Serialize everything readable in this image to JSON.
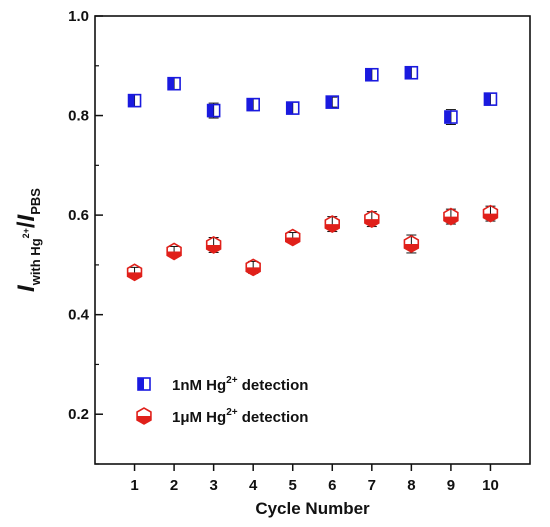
{
  "chart_data": {
    "type": "scatter",
    "x": [
      1,
      2,
      3,
      4,
      5,
      6,
      7,
      8,
      9,
      10
    ],
    "xlabel": "Cycle Number",
    "ylabel": {
      "main": "I",
      "sub1": "with Hg",
      "sup": "2+",
      "slash": "/",
      "main2": "I",
      "sub2": "PBS"
    },
    "xlim": [
      0,
      11
    ],
    "ylim": [
      0.1,
      1.0
    ],
    "xticks": [
      1,
      2,
      3,
      4,
      5,
      6,
      7,
      8,
      9,
      10
    ],
    "yticks": [
      0.2,
      0.4,
      0.6,
      0.8,
      1.0
    ],
    "ytick_labels": [
      "0.2",
      "0.4",
      "0.6",
      "0.8",
      "1.0"
    ],
    "grid": false,
    "legend_position": "bottom-left",
    "series": [
      {
        "name_parts": {
          "pre": "1nM Hg",
          "sup": "2+",
          "post": " detection"
        },
        "marker": "half-filled-square",
        "color": "#1a1adf",
        "values": [
          0.83,
          0.864,
          0.81,
          0.822,
          0.815,
          0.827,
          0.882,
          0.886,
          0.797,
          0.833
        ],
        "errors": [
          0.012,
          0.012,
          0.015,
          0.012,
          0.012,
          0.01,
          0.012,
          0.012,
          0.015,
          0.012
        ]
      },
      {
        "name_parts": {
          "pre": "1μM Hg",
          "sup": "2+",
          "post": " detection"
        },
        "marker": "half-filled-hexagon",
        "color": "#e0201a",
        "values": [
          0.485,
          0.527,
          0.54,
          0.495,
          0.555,
          0.582,
          0.592,
          0.542,
          0.597,
          0.603
        ],
        "errors": [
          0.01,
          0.01,
          0.015,
          0.012,
          0.01,
          0.015,
          0.015,
          0.018,
          0.015,
          0.015
        ]
      }
    ]
  }
}
